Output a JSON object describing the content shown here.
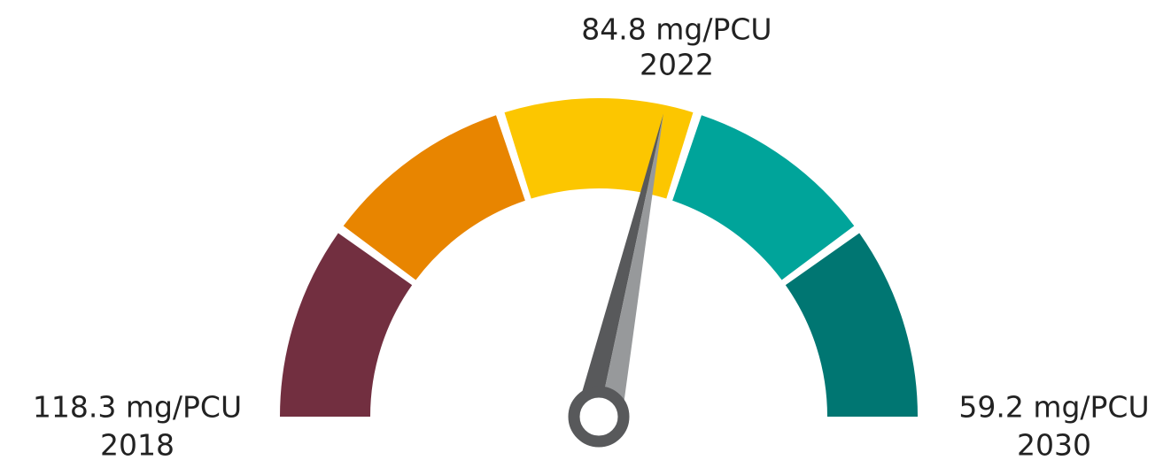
{
  "chart_data": {
    "type": "gauge",
    "categories": [
      "2022"
    ],
    "values": [
      84.8
    ],
    "value_labels": [
      "84.8 mg/PCU"
    ],
    "ylim": [
      118.3,
      59.2
    ],
    "yticks": [
      {
        "value": 118.3,
        "label": "118.3 mg/PCU"
      },
      {
        "value": 59.2,
        "label": "59.2 mg/PCU"
      }
    ],
    "ytick_years": [
      "2018",
      "2030"
    ],
    "segment_colors": [
      "#722f40",
      "#e88500",
      "#fcc600",
      "#00a49a",
      "#007672"
    ],
    "needle_colors": [
      "#58595b",
      "#97999b"
    ]
  }
}
